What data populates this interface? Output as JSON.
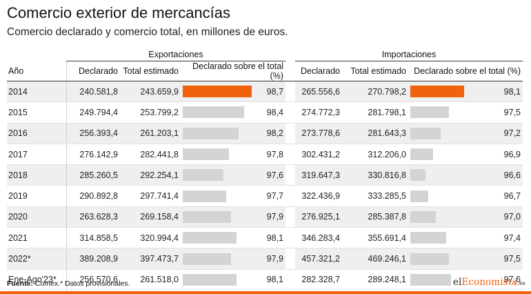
{
  "title": "Comercio exterior de mercancías",
  "subtitle": "Comercio declarado y comercio total, en millones de euros.",
  "groups": {
    "exports": "Exportaciones",
    "imports": "Importaciones"
  },
  "headers": {
    "year": "Año",
    "declared": "Declarado",
    "total": "Total estimado",
    "pct": "Declarado sobre el total (%)"
  },
  "colors": {
    "highlight": "#f2610c",
    "bar": "#d4d4d4",
    "stripe": "#efefef"
  },
  "chart_data": {
    "type": "table",
    "bar_scale_min": 96,
    "bar_scale_max": 98.7,
    "rows": [
      {
        "year": "2014",
        "exp_declared": "240.581,8",
        "exp_total": "243.659,9",
        "exp_pct": 98.7,
        "exp_pct_label": "98,7",
        "imp_declared": "265.556,6",
        "imp_total": "270.798,2",
        "imp_pct": 98.1,
        "imp_pct_label": "98,1",
        "highlight": true
      },
      {
        "year": "2015",
        "exp_declared": "249.794,4",
        "exp_total": "253.799,2",
        "exp_pct": 98.4,
        "exp_pct_label": "98,4",
        "imp_declared": "274.772,3",
        "imp_total": "281.798,1",
        "imp_pct": 97.5,
        "imp_pct_label": "97,5",
        "highlight": false
      },
      {
        "year": "2016",
        "exp_declared": "256.393,4",
        "exp_total": "261.203,1",
        "exp_pct": 98.2,
        "exp_pct_label": "98,2",
        "imp_declared": "273.778,6",
        "imp_total": "281.643,3",
        "imp_pct": 97.2,
        "imp_pct_label": "97,2",
        "highlight": false
      },
      {
        "year": "2017",
        "exp_declared": "276.142,9",
        "exp_total": "282.441,8",
        "exp_pct": 97.8,
        "exp_pct_label": "97,8",
        "imp_declared": "302.431,2",
        "imp_total": "312.206,0",
        "imp_pct": 96.9,
        "imp_pct_label": "96,9",
        "highlight": false
      },
      {
        "year": "2018",
        "exp_declared": "285.260,5",
        "exp_total": "292.254,1",
        "exp_pct": 97.6,
        "exp_pct_label": "97,6",
        "imp_declared": "319.647,3",
        "imp_total": "330.816,8",
        "imp_pct": 96.6,
        "imp_pct_label": "96,6",
        "highlight": false
      },
      {
        "year": "2019",
        "exp_declared": "290.892,8",
        "exp_total": "297.741,4",
        "exp_pct": 97.7,
        "exp_pct_label": "97,7",
        "imp_declared": "322.436,9",
        "imp_total": "333.285,5",
        "imp_pct": 96.7,
        "imp_pct_label": "96,7",
        "highlight": false
      },
      {
        "year": "2020",
        "exp_declared": "263.628,3",
        "exp_total": "269.158,4",
        "exp_pct": 97.9,
        "exp_pct_label": "97,9",
        "imp_declared": "276.925,1",
        "imp_total": "285.387,8",
        "imp_pct": 97.0,
        "imp_pct_label": "97,0",
        "highlight": false
      },
      {
        "year": "2021",
        "exp_declared": "314.858,5",
        "exp_total": "320.994,4",
        "exp_pct": 98.1,
        "exp_pct_label": "98,1",
        "imp_declared": "346.283,4",
        "imp_total": "355.691,4",
        "imp_pct": 97.4,
        "imp_pct_label": "97,4",
        "highlight": false
      },
      {
        "year": "2022*",
        "exp_declared": "389.208,9",
        "exp_total": "397.473,7",
        "exp_pct": 97.9,
        "exp_pct_label": "97,9",
        "imp_declared": "457.321,2",
        "imp_total": "469.246,1",
        "imp_pct": 97.5,
        "imp_pct_label": "97,5",
        "highlight": false
      },
      {
        "year": "Ene-Ago'23*",
        "exp_declared": "256.570,6",
        "exp_total": "261.518,0",
        "exp_pct": 98.1,
        "exp_pct_label": "98,1",
        "imp_declared": "282.328,7",
        "imp_total": "289.248,1",
        "imp_pct": 97.6,
        "imp_pct_label": "97,6",
        "highlight": false
      }
    ]
  },
  "footer": {
    "source_label": "Fuente:",
    "source_text": " Comex.* Datos provisionales."
  },
  "logo": {
    "part1": "el",
    "part2": "Economista",
    "part3": ".es"
  }
}
